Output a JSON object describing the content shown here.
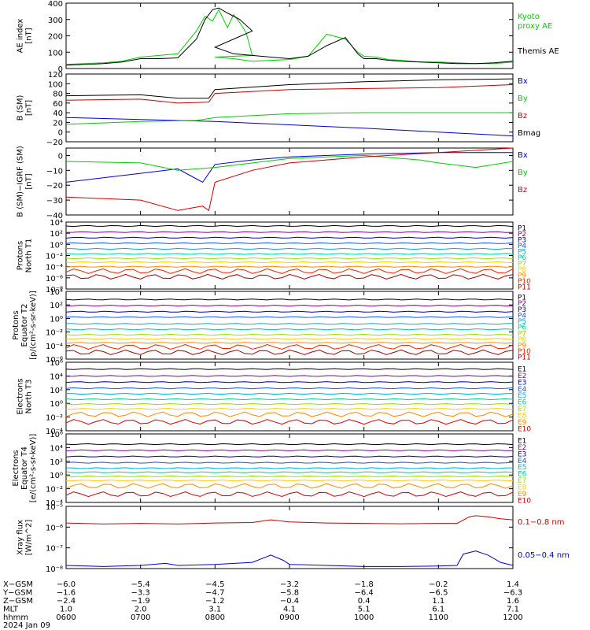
{
  "chart_data": [
    {
      "type": "line",
      "ylabel": "AE index\n[nT]",
      "ylim": [
        0,
        400
      ],
      "yticks": [
        "0",
        "100",
        "200",
        "300",
        "400"
      ],
      "series": [
        {
          "name": "Kyoto\nproxy AE",
          "color": "#00cc00",
          "t": [
            600,
            615,
            630,
            645,
            700,
            715,
            730,
            745,
            752,
            758,
            763,
            770,
            775,
            780,
            785,
            790,
            800,
            815,
            830,
            845,
            900,
            915,
            930,
            945,
            950,
            955,
            1000,
            1010,
            1020,
            1030,
            1045,
            1100,
            1115,
            1130,
            1145,
            1200
          ],
          "values": [
            25,
            30,
            35,
            45,
            70,
            80,
            90,
            230,
            320,
            290,
            360,
            250,
            330,
            280,
            220,
            80,
            70,
            60,
            45,
            50,
            55,
            75,
            210,
            180,
            140,
            100,
            75,
            70,
            55,
            50,
            40,
            40,
            35,
            30,
            30,
            40
          ]
        },
        {
          "name": "Themis AE",
          "color": "#000000",
          "t": [
            600,
            615,
            630,
            645,
            700,
            715,
            730,
            745,
            752,
            758,
            763,
            770,
            780,
            790,
            800,
            815,
            830,
            845,
            900,
            915,
            930,
            945,
            950,
            955,
            1000,
            1010,
            1020,
            1030,
            1045,
            1100,
            1115,
            1130,
            1145,
            1200
          ],
          "values": [
            20,
            25,
            30,
            40,
            60,
            60,
            65,
            180,
            300,
            360,
            370,
            340,
            300,
            230,
            130,
            90,
            80,
            70,
            60,
            75,
            140,
            190,
            140,
            90,
            60,
            60,
            50,
            45,
            40,
            35,
            30,
            30,
            35,
            45
          ]
        }
      ]
    },
    {
      "type": "line",
      "ylabel": "B  (SM)\n[nT]",
      "ylim": [
        -20,
        120
      ],
      "yticks": [
        "−20",
        "0",
        "20",
        "40",
        "60",
        "80",
        "100",
        "120"
      ],
      "series": [
        {
          "name": "Bx",
          "color": "#0000cc",
          "t": [
            600,
            700,
            730,
            800,
            900,
            1000,
            1100,
            1200
          ],
          "values": [
            30,
            26,
            24,
            22,
            15,
            8,
            0,
            -8
          ]
        },
        {
          "name": "By",
          "color": "#00cc00",
          "t": [
            600,
            700,
            745,
            800,
            900,
            1000,
            1100,
            1200
          ],
          "values": [
            16,
            22,
            24,
            30,
            38,
            40,
            40,
            40
          ]
        },
        {
          "name": "Bz",
          "color": "#cc0000",
          "t": [
            600,
            700,
            730,
            755,
            800,
            900,
            1000,
            1100,
            1200
          ],
          "values": [
            66,
            68,
            60,
            62,
            80,
            88,
            90,
            92,
            98
          ]
        },
        {
          "name": "Bmag",
          "color": "#000000",
          "t": [
            600,
            700,
            730,
            755,
            800,
            900,
            1000,
            1100,
            1200
          ],
          "values": [
            75,
            77,
            70,
            70,
            88,
            98,
            104,
            108,
            110
          ]
        }
      ]
    },
    {
      "type": "line",
      "ylabel": "B (SM)−IGRF (SM)\n[nT]",
      "ylim": [
        -40,
        5
      ],
      "yticks": [
        "−40",
        "−30",
        "−20",
        "−10",
        "0"
      ],
      "series": [
        {
          "name": "Bx",
          "color": "#0000cc",
          "t": [
            600,
            700,
            730,
            750,
            800,
            830,
            900,
            1000,
            1100,
            1200
          ],
          "values": [
            -18,
            -12,
            -9,
            -18,
            -6,
            -3,
            -1,
            1,
            2,
            2
          ]
        },
        {
          "name": "By",
          "color": "#00cc00",
          "t": [
            600,
            700,
            730,
            800,
            900,
            1000,
            1045,
            1100,
            1130,
            1200
          ],
          "values": [
            -4,
            -5,
            -10,
            -8,
            -2,
            0,
            -3,
            -5,
            -8,
            -4
          ]
        },
        {
          "name": "Bz",
          "color": "#cc0000",
          "t": [
            600,
            700,
            730,
            750,
            755,
            800,
            830,
            900,
            1000,
            1100,
            1200
          ],
          "values": [
            -28,
            -30,
            -37,
            -34,
            -37,
            -18,
            -10,
            -5,
            -1,
            2,
            5
          ]
        }
      ]
    },
    {
      "type": "line",
      "ylabel": "Protons\nNorth T1",
      "log": true,
      "ylim": [
        -8,
        4
      ],
      "yticks": [
        "10⁴",
        "10²",
        "10⁰",
        "10⁻²",
        "10⁻⁴",
        "10⁻⁶",
        "10⁻⁸"
      ],
      "ytick_exp": [
        4,
        2,
        0,
        -2,
        -4,
        -6,
        -8
      ],
      "channels": [
        {
          "name": "P1",
          "color": "#000000",
          "log_level": 3.3
        },
        {
          "name": "P2",
          "color": "#880088",
          "log_level": 2.2
        },
        {
          "name": "P3",
          "color": "#0000aa",
          "log_level": 1.2
        },
        {
          "name": "P4",
          "color": "#1155ff",
          "log_level": 0.2
        },
        {
          "name": "P5",
          "color": "#00aadd",
          "log_level": -0.8
        },
        {
          "name": "P6",
          "color": "#00cc99",
          "log_level": -1.7
        },
        {
          "name": "P7",
          "color": "#99dd00",
          "log_level": -2.5
        },
        {
          "name": "P8",
          "color": "#ffcc00",
          "log_level": -3.2
        },
        {
          "name": "P9",
          "color": "#ff8800",
          "log_level": -4.0
        },
        {
          "name": "P10",
          "color": "#ee2200",
          "log_level": -4.8
        },
        {
          "name": "P11",
          "color": "#aa0000",
          "log_level": -5.8
        }
      ]
    },
    {
      "type": "line",
      "ylabel": "Protons\nEquator T2\n[p/(cm²-s-sr-keV)]",
      "log": true,
      "ylim": [
        -6,
        4
      ],
      "yticks": [
        "10⁴",
        "10²",
        "10⁰",
        "10⁻²",
        "10⁻⁴",
        "10⁻⁶"
      ],
      "ytick_exp": [
        4,
        2,
        0,
        -2,
        -4,
        -6
      ],
      "channels": [
        {
          "name": "P1",
          "color": "#000000",
          "log_level": 2.8
        },
        {
          "name": "P2",
          "color": "#880088",
          "log_level": 1.9
        },
        {
          "name": "P3",
          "color": "#0000aa",
          "log_level": 1.0
        },
        {
          "name": "P4",
          "color": "#1155ff",
          "log_level": 0.2
        },
        {
          "name": "P5",
          "color": "#00aadd",
          "log_level": -0.8
        },
        {
          "name": "P6",
          "color": "#00cc99",
          "log_level": -1.6
        },
        {
          "name": "P7",
          "color": "#99dd00",
          "log_level": -2.4
        },
        {
          "name": "P8",
          "color": "#ffcc00",
          "log_level": -3.0
        },
        {
          "name": "P9",
          "color": "#ff8800",
          "log_level": -3.6
        },
        {
          "name": "P10",
          "color": "#ee2200",
          "log_level": -4.2
        },
        {
          "name": "P11",
          "color": "#aa0000",
          "log_level": -5.0
        }
      ]
    },
    {
      "type": "line",
      "ylabel": "Electrons\nNorth T3",
      "log": true,
      "ylim": [
        -4,
        6
      ],
      "yticks": [
        "10⁶",
        "10⁴",
        "10²",
        "10⁰",
        "10⁻²",
        "10⁻⁴"
      ],
      "ytick_exp": [
        6,
        4,
        2,
        0,
        -2,
        -4
      ],
      "channels": [
        {
          "name": "E1",
          "color": "#000000",
          "log_level": 5.0
        },
        {
          "name": "E2",
          "color": "#880088",
          "log_level": 4.0
        },
        {
          "name": "E3",
          "color": "#0000aa",
          "log_level": 3.1
        },
        {
          "name": "E4",
          "color": "#1155ff",
          "log_level": 2.2
        },
        {
          "name": "E5",
          "color": "#00aadd",
          "log_level": 1.4
        },
        {
          "name": "E6",
          "color": "#00cc99",
          "log_level": 0.6
        },
        {
          "name": "E7",
          "color": "#99dd00",
          "log_level": -0.1
        },
        {
          "name": "E8",
          "color": "#ffcc00",
          "log_level": -0.8
        },
        {
          "name": "E9",
          "color": "#ff8800",
          "log_level": -1.6
        },
        {
          "name": "E10",
          "color": "#cc0000",
          "log_level": -2.7
        }
      ]
    },
    {
      "type": "line",
      "ylabel": "Electrons\nEquator T4\n[e/(cm²-s-sr-keV)]",
      "log": true,
      "ylim": [
        -4,
        6
      ],
      "yticks": [
        "10⁶",
        "10⁴",
        "10²",
        "10⁰",
        "10⁻²",
        "10⁻⁴"
      ],
      "ytick_exp": [
        6,
        4,
        2,
        0,
        -2,
        -4
      ],
      "channels": [
        {
          "name": "E1",
          "color": "#000000",
          "log_level": 4.5
        },
        {
          "name": "E2",
          "color": "#880088",
          "log_level": 3.6
        },
        {
          "name": "E3",
          "color": "#0000aa",
          "log_level": 2.7
        },
        {
          "name": "E4",
          "color": "#1155ff",
          "log_level": 1.8
        },
        {
          "name": "E5",
          "color": "#00aadd",
          "log_level": 1.0
        },
        {
          "name": "E6",
          "color": "#00cc99",
          "log_level": 0.4
        },
        {
          "name": "E7",
          "color": "#99dd00",
          "log_level": -0.2
        },
        {
          "name": "E8",
          "color": "#ffcc00",
          "log_level": -0.8
        },
        {
          "name": "E9",
          "color": "#ff8800",
          "log_level": -1.6
        },
        {
          "name": "E10",
          "color": "#cc0000",
          "log_level": -2.8
        }
      ]
    },
    {
      "type": "line",
      "ylabel": "Xray flux\n[W/m^2]",
      "log": true,
      "ylim": [
        -8,
        -5
      ],
      "yticks": [
        "10⁻⁵",
        "10⁻⁶",
        "10⁻⁷",
        "10⁻⁸"
      ],
      "ytick_exp": [
        -5,
        -6,
        -7,
        -8
      ],
      "series": [
        {
          "name": "0.1−0.8 nm",
          "color": "#cc0000",
          "t": [
            600,
            630,
            700,
            730,
            800,
            830,
            845,
            900,
            930,
            1000,
            1030,
            1100,
            1115,
            1125,
            1130,
            1140,
            1150,
            1200
          ],
          "values": [
            -5.8,
            -5.85,
            -5.82,
            -5.85,
            -5.8,
            -5.78,
            -5.65,
            -5.75,
            -5.8,
            -5.82,
            -5.84,
            -5.82,
            -5.82,
            -5.5,
            -5.45,
            -5.5,
            -5.6,
            -5.65
          ]
        },
        {
          "name": "0.05−0.4 nm",
          "color": "#0000cc",
          "t": [
            600,
            630,
            700,
            720,
            730,
            800,
            830,
            845,
            855,
            900,
            930,
            1000,
            1030,
            1100,
            1115,
            1120,
            1130,
            1140,
            1150,
            1200
          ],
          "values": [
            -7.85,
            -7.9,
            -7.85,
            -7.75,
            -7.85,
            -7.8,
            -7.7,
            -7.35,
            -7.6,
            -7.8,
            -7.85,
            -7.9,
            -7.9,
            -7.88,
            -7.85,
            -7.3,
            -7.15,
            -7.35,
            -7.7,
            -7.85
          ]
        }
      ]
    }
  ],
  "time_axis": {
    "minutes": [
      600,
      700,
      800,
      900,
      1000,
      1100,
      1200
    ]
  },
  "ephemeris": {
    "rows": [
      {
        "label": "X−GSM",
        "values": [
          "−6.0",
          "−5.4",
          "−4.5",
          "−3.2",
          "−1.8",
          "−0.2",
          "1.4"
        ]
      },
      {
        "label": "Y−GSM",
        "values": [
          "−1.6",
          "−3.3",
          "−4.7",
          "−5.8",
          "−6.4",
          "−6.5",
          "−6.3"
        ]
      },
      {
        "label": "Z−GSM",
        "values": [
          "−2.4",
          "−1.9",
          "−1.2",
          "−0.4",
          "0.4",
          "1.1",
          "1.6"
        ]
      },
      {
        "label": "MLT",
        "values": [
          "1.0",
          "2.0",
          "3.1",
          "4.1",
          "5.1",
          "6.1",
          "7.1"
        ]
      },
      {
        "label": "hhmm",
        "values": [
          "0600",
          "0700",
          "0800",
          "0900",
          "1000",
          "1100",
          "1200"
        ]
      }
    ],
    "date": "2024 Jan 09"
  }
}
